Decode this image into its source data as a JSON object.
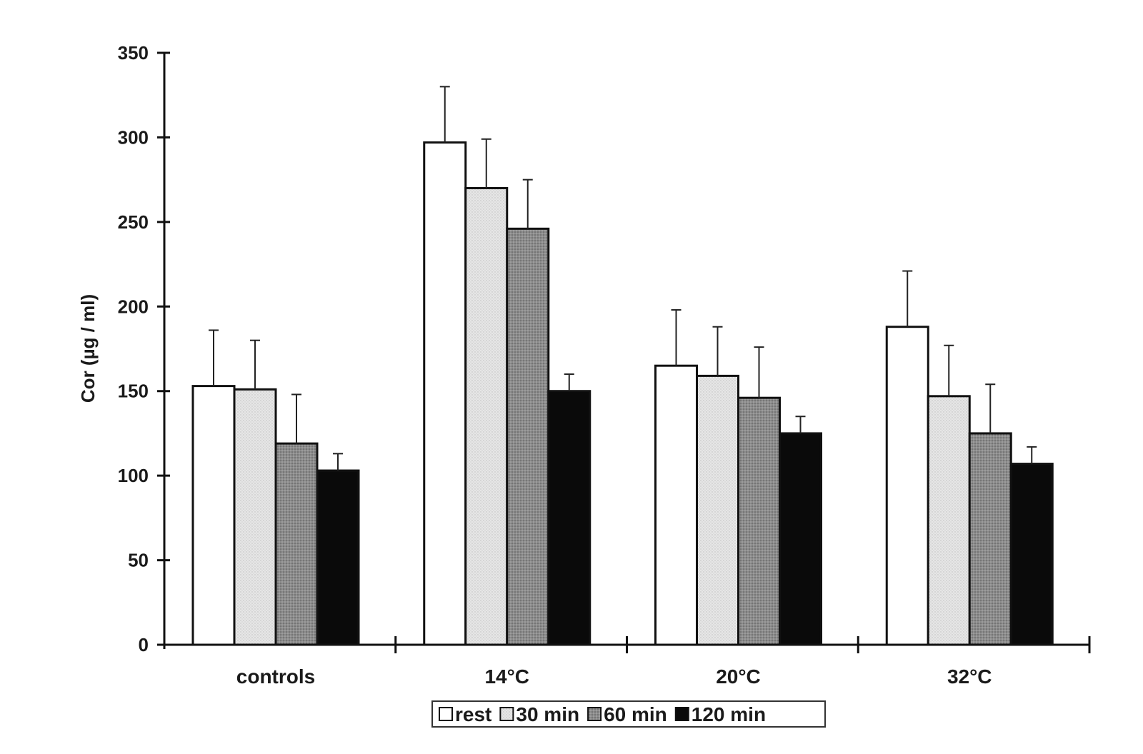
{
  "chart_data": {
    "type": "bar",
    "ylabel": "Cor (µg /  ml)",
    "xlabel": "",
    "ylim": [
      0,
      350
    ],
    "y_ticks": [
      "0",
      "50",
      "100",
      "150",
      "200",
      "250",
      "300",
      "350"
    ],
    "categories": [
      "controls",
      "14°C",
      "20°C",
      "32°C"
    ],
    "series": [
      {
        "name": "rest",
        "values": [
          153,
          297,
          165,
          188
        ],
        "errors": [
          33,
          33,
          33,
          33
        ],
        "fill": "#ffffff"
      },
      {
        "name": "30 min",
        "values": [
          151,
          270,
          159,
          147
        ],
        "errors": [
          29,
          29,
          29,
          30
        ],
        "fill": "#e3e3e3"
      },
      {
        "name": "60 min",
        "values": [
          119,
          246,
          146,
          125
        ],
        "errors": [
          29,
          29,
          30,
          29
        ],
        "fill": "#8f8f8f"
      },
      {
        "name": "120 min",
        "values": [
          103,
          150,
          125,
          107
        ],
        "errors": [
          10,
          10,
          10,
          10
        ],
        "fill": "#0a0a0a"
      }
    ],
    "legend_position": "bottom-center",
    "grid": false,
    "error_bars": "upper only"
  }
}
